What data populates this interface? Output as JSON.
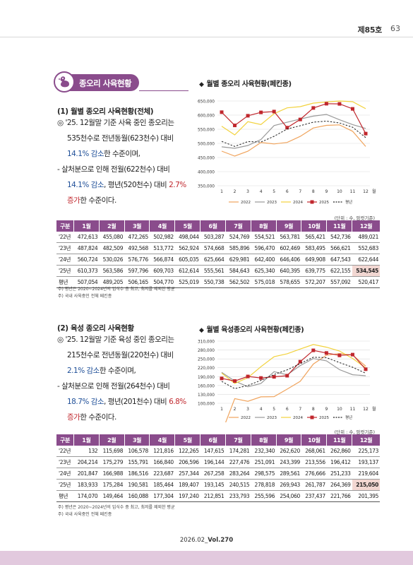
{
  "header": {
    "issue": "제85호",
    "page": "63"
  },
  "section": {
    "title": "종오리 사육현황",
    "icon": "duck-icon"
  },
  "s1": {
    "heading": "(1) 월별 종오리 사육현황(전체)",
    "l1": "◎ '25. 12월말 기준 사육 중인 종오리는",
    "l2": "535천수로 전년동월(623천수) 대비",
    "l3a": "14.1% 감소",
    "l3b": "한 수준이며,",
    "l4": "- 살처분으로 인해 전월(622천수) 대비",
    "l5a": "14.1% 감소",
    "l5b": ", 평년(520천수) 대비 ",
    "l5c": "2.7%",
    "l6a": "증가",
    "l6b": "한 수준이다."
  },
  "s2": {
    "heading": "(2) 육성 종오리 사육현황",
    "l1": "◎ '25. 12월말 기준 육성 중인 종오리는",
    "l2": "215천수로  전년동월(220천수) 대비",
    "l3a": "2.1% 감소",
    "l3b": "한 수준이며,",
    "l4": "- 살처분으로 인해 전월(264천수) 대비",
    "l5a": "18.7% 감소",
    "l5b": ", 평년(201천수) 대비 ",
    "l5c": "6.8%",
    "l6a": "증가",
    "l6b": "한 수준이다."
  },
  "chart1": {
    "title": "월별 종오리 사육현황(페킨종)",
    "unit": "(단위 : 수, 암컷기준)"
  },
  "chart2": {
    "title": "월별 육성종오리 사육현황(페킨종)",
    "unit": "(단위 : 수, 암컷기준)"
  },
  "chart_data": [
    {
      "type": "line",
      "title": "월별 종오리 사육현황(페킨종)",
      "x": [
        "1",
        "2",
        "3",
        "4",
        "5",
        "6",
        "7",
        "8",
        "9",
        "10",
        "11",
        "12"
      ],
      "x_suffix": "월",
      "ylim": [
        350000,
        650000
      ],
      "yticks": [
        350000,
        400000,
        450000,
        500000,
        550000,
        600000,
        650000
      ],
      "ytick_labels": [
        "350,000",
        "400,000",
        "450,000",
        "500,000",
        "550,000",
        "600,000",
        "650,000"
      ],
      "series": [
        {
          "name": "2022",
          "color": "#f0a45d",
          "values": [
            472613,
            455080,
            472265,
            502982,
            498044,
            503287,
            524769,
            554521,
            563781,
            565421,
            542736,
            489021
          ]
        },
        {
          "name": "2023",
          "color": "#9a9a9a",
          "values": [
            487824,
            482509,
            492568,
            513772,
            562924,
            574668,
            585896,
            596470,
            602469,
            583495,
            566621,
            552683
          ]
        },
        {
          "name": "2024",
          "color": "#f2d23c",
          "values": [
            560724,
            530026,
            576776,
            566874,
            605035,
            625664,
            629981,
            642400,
            646406,
            649908,
            647543,
            622644
          ]
        },
        {
          "name": "2025",
          "color": "#c0272d",
          "marker": "square",
          "values": [
            610373,
            563586,
            597796,
            609703,
            612614,
            555561,
            584643,
            625340,
            640395,
            639775,
            622155,
            534545
          ]
        },
        {
          "name": "평년",
          "color": "#222222",
          "dash": true,
          "values": [
            507054,
            489205,
            506165,
            504770,
            525019,
            550738,
            562502,
            575018,
            578655,
            572207,
            557092,
            520417
          ]
        }
      ]
    },
    {
      "type": "line",
      "title": "월별 육성종오리 사육현황(페킨종)",
      "x": [
        "1",
        "2",
        "3",
        "4",
        "5",
        "6",
        "7",
        "8",
        "9",
        "10",
        "11",
        "12"
      ],
      "x_suffix": "월",
      "ylim": [
        100000,
        310000
      ],
      "yticks": [
        100000,
        130000,
        160000,
        190000,
        220000,
        250000,
        280000,
        310000
      ],
      "ytick_labels": [
        "100,000",
        "130,000",
        "160,000",
        "190,000",
        "220,000",
        "250,000",
        "280,000",
        "310,000"
      ],
      "series": [
        {
          "name": "2022",
          "color": "#f0a45d",
          "values": [
            132,
            115698,
            106578,
            121816,
            122265,
            147615,
            174281,
            232340,
            262620,
            268061,
            262860,
            225173
          ]
        },
        {
          "name": "2023",
          "color": "#9a9a9a",
          "values": [
            204214,
            175279,
            155791,
            166840,
            206596,
            196144,
            227476,
            251091,
            243399,
            213556,
            196412,
            193137
          ]
        },
        {
          "name": "2024",
          "color": "#f2d23c",
          "values": [
            201847,
            166988,
            186516,
            223687,
            257344,
            267258,
            283264,
            298575,
            289561,
            276666,
            251233,
            219604
          ]
        },
        {
          "name": "2025",
          "color": "#c0272d",
          "marker": "square",
          "values": [
            183933,
            175284,
            190581,
            185464,
            189407,
            193145,
            240515,
            278818,
            269943,
            261787,
            264369,
            215050
          ]
        },
        {
          "name": "평년",
          "color": "#222222",
          "dash": true,
          "values": [
            174070,
            149464,
            160088,
            177304,
            197240,
            212851,
            233793,
            255596,
            254060,
            237437,
            221766,
            201395
          ]
        }
      ]
    }
  ],
  "table1": {
    "headers": [
      "구분",
      "1월",
      "2월",
      "3월",
      "4월",
      "5월",
      "6월",
      "7월",
      "8월",
      "9월",
      "10월",
      "11월",
      "12월"
    ],
    "rows": [
      [
        "'22년",
        "472,613",
        "455,080",
        "472,265",
        "502,982",
        "498,044",
        "503,287",
        "524,769",
        "554,521",
        "563,781",
        "565,421",
        "542,736",
        "489,021"
      ],
      [
        "'23년",
        "487,824",
        "482,509",
        "492,568",
        "513,772",
        "562,924",
        "574,668",
        "585,896",
        "596,470",
        "602,469",
        "583,495",
        "566,621",
        "552,683"
      ],
      [
        "'24년",
        "560,724",
        "530,026",
        "576,776",
        "566,874",
        "605,035",
        "625,664",
        "629,981",
        "642,400",
        "646,406",
        "649,908",
        "647,543",
        "622,644"
      ],
      [
        "'25년",
        "610,373",
        "563,586",
        "597,796",
        "609,703",
        "612,614",
        "555,561",
        "584,643",
        "625,340",
        "640,395",
        "639,775",
        "622,155",
        "534,545"
      ],
      [
        "평년",
        "507,054",
        "489,205",
        "506,165",
        "504,770",
        "525,019",
        "550,738",
        "562,502",
        "575,018",
        "578,655",
        "572,207",
        "557,092",
        "520,417"
      ]
    ],
    "note1": "주) 평년은 2020~2024년의 입식수 중 최고, 최저를 제외한 평균",
    "note2": "주) 국내 사육중인 전체 페킨종"
  },
  "table2": {
    "headers": [
      "구분",
      "1월",
      "2월",
      "3월",
      "4월",
      "5월",
      "6월",
      "7월",
      "8월",
      "9월",
      "10월",
      "11월",
      "12월"
    ],
    "rows": [
      [
        "'22년",
        "132",
        "115,698",
        "106,578",
        "121,816",
        "122,265",
        "147,615",
        "174,281",
        "232,340",
        "262,620",
        "268,061",
        "262,860",
        "225,173"
      ],
      [
        "'23년",
        "204,214",
        "175,279",
        "155,791",
        "166,840",
        "206,596",
        "196,144",
        "227,476",
        "251,091",
        "243,399",
        "213,556",
        "196,412",
        "193,137"
      ],
      [
        "'24년",
        "201,847",
        "166,988",
        "186,516",
        "223,687",
        "257,344",
        "267,258",
        "283,264",
        "298,575",
        "289,561",
        "276,666",
        "251,233",
        "219,604"
      ],
      [
        "'25년",
        "183,933",
        "175,284",
        "190,581",
        "185,464",
        "189,407",
        "193,145",
        "240,515",
        "278,818",
        "269,943",
        "261,787",
        "264,369",
        "215,050"
      ],
      [
        "평년",
        "174,070",
        "149,464",
        "160,088",
        "177,304",
        "197,240",
        "212,851",
        "233,793",
        "255,596",
        "254,060",
        "237,437",
        "221,766",
        "201,395"
      ]
    ],
    "note1": "주) 평년은 2020~2024년의 입식수 중 최고, 최저를 제외한 평균",
    "note2": "주) 국내 사육중인 전체 페킨종"
  },
  "footer": {
    "date": "2026.02_",
    "vol": "Vol.270"
  }
}
